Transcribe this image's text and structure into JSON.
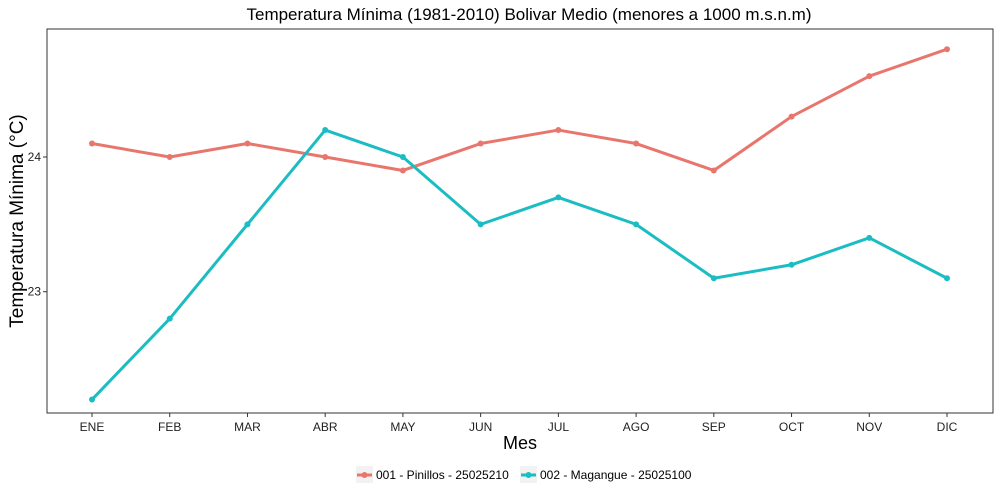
{
  "chart_data": {
    "type": "line",
    "title": "Temperatura Mínima (1981-2010) Bolivar Medio (menores a 1000 m.s.n.m)",
    "xlabel": "Mes",
    "ylabel": "Temperatura Mínima (°C)",
    "categories": [
      "ENE",
      "FEB",
      "MAR",
      "ABR",
      "MAY",
      "JUN",
      "JUL",
      "AGO",
      "SEP",
      "OCT",
      "NOV",
      "DIC"
    ],
    "ylim": [
      22.1,
      24.95
    ],
    "yticks": [
      23,
      24
    ],
    "ytick_labels": [
      "23",
      "24"
    ],
    "grid": false,
    "legend_position": "bottom",
    "series": [
      {
        "name": "001 - Pinillos - 25025210",
        "color": "#E8766D",
        "values": [
          24.1,
          24.0,
          24.1,
          24.0,
          23.9,
          24.1,
          24.2,
          24.1,
          23.9,
          24.3,
          24.6,
          24.8
        ]
      },
      {
        "name": "002 - Magangue - 25025100",
        "color": "#1CBDC2",
        "values": [
          22.2,
          22.8,
          23.5,
          24.2,
          24.0,
          23.5,
          23.7,
          23.5,
          23.1,
          23.2,
          23.4,
          23.1
        ]
      }
    ]
  }
}
